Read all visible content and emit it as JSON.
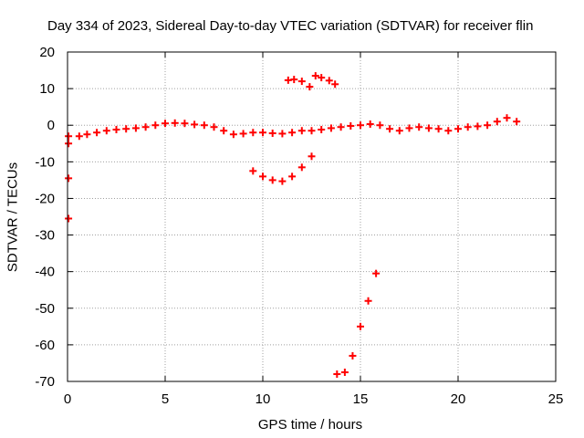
{
  "chart_data": {
    "type": "scatter",
    "title": "Day 334 of 2023, Sidereal Day-to-day VTEC variation (SDTVAR) for receiver flin",
    "xlabel": "GPS time / hours",
    "ylabel": "SDTVAR / TECUs",
    "xlim": [
      0,
      25
    ],
    "ylim": [
      -70,
      20
    ],
    "xticks": [
      0,
      5,
      10,
      15,
      20,
      25
    ],
    "yticks": [
      -70,
      -60,
      -50,
      -40,
      -30,
      -20,
      -10,
      0,
      10,
      20
    ],
    "grid": true,
    "marker_color": "#ff0000",
    "series": [
      {
        "values": [
          [
            0.05,
            -3
          ],
          [
            0.05,
            -5
          ],
          [
            0.05,
            -14.5
          ],
          [
            0.05,
            -25.5
          ],
          [
            0.6,
            -3
          ],
          [
            1.0,
            -2.5
          ],
          [
            1.5,
            -2
          ],
          [
            2.0,
            -1.5
          ],
          [
            2.5,
            -1.2
          ],
          [
            3.0,
            -1
          ],
          [
            3.5,
            -0.8
          ],
          [
            4.0,
            -0.5
          ],
          [
            4.5,
            0
          ],
          [
            5.0,
            0.5
          ],
          [
            5.5,
            0.6
          ],
          [
            6.0,
            0.5
          ],
          [
            6.5,
            0.2
          ],
          [
            7.0,
            0
          ],
          [
            7.5,
            -0.5
          ],
          [
            8.0,
            -1.5
          ],
          [
            8.5,
            -2.5
          ],
          [
            9.0,
            -2.3
          ],
          [
            9.5,
            -2
          ],
          [
            10.0,
            -2
          ],
          [
            10.5,
            -2.2
          ],
          [
            11.0,
            -2.3
          ],
          [
            11.5,
            -2
          ],
          [
            12.0,
            -1.5
          ],
          [
            12.5,
            -1.5
          ],
          [
            13.0,
            -1.2
          ],
          [
            13.5,
            -0.8
          ],
          [
            14.0,
            -0.5
          ],
          [
            14.5,
            -0.2
          ],
          [
            15.0,
            0
          ],
          [
            15.5,
            0.3
          ],
          [
            16.0,
            0
          ],
          [
            16.5,
            -1
          ],
          [
            17.0,
            -1.5
          ],
          [
            17.5,
            -0.8
          ],
          [
            18.0,
            -0.5
          ],
          [
            18.5,
            -0.8
          ],
          [
            19.0,
            -1
          ],
          [
            19.5,
            -1.5
          ],
          [
            20.0,
            -1
          ],
          [
            20.5,
            -0.5
          ],
          [
            21.0,
            -0.3
          ],
          [
            21.5,
            0
          ],
          [
            22.0,
            1
          ],
          [
            22.5,
            2
          ],
          [
            23.0,
            1
          ],
          [
            9.5,
            -12.5
          ],
          [
            10.0,
            -14
          ],
          [
            10.5,
            -15
          ],
          [
            11.0,
            -15.3
          ],
          [
            11.5,
            -14
          ],
          [
            12.0,
            -11.5
          ],
          [
            12.5,
            -8.5
          ],
          [
            11.3,
            12.3
          ],
          [
            11.6,
            12.5
          ],
          [
            12.0,
            12
          ],
          [
            12.4,
            10.5
          ],
          [
            12.7,
            13.5
          ],
          [
            13.0,
            13
          ],
          [
            13.4,
            12.2
          ],
          [
            13.7,
            11.2
          ],
          [
            13.8,
            -68
          ],
          [
            14.2,
            -67.5
          ],
          [
            14.6,
            -63
          ],
          [
            15.0,
            -55
          ],
          [
            15.4,
            -48
          ],
          [
            15.8,
            -40.5
          ]
        ]
      }
    ]
  }
}
